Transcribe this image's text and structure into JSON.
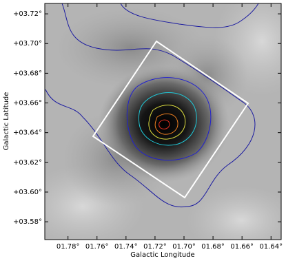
{
  "chart_data": {
    "type": "image",
    "xlabel": "Galactic Longitude",
    "ylabel": "Galactic Latitude",
    "xlim": [
      1.796,
      1.633
    ],
    "ylim": [
      3.568,
      3.727
    ],
    "xticks": [
      {
        "value": 1.78,
        "label": "01.78°"
      },
      {
        "value": 1.76,
        "label": "01.76°"
      },
      {
        "value": 1.74,
        "label": "01.74°"
      },
      {
        "value": 1.72,
        "label": "01.72°"
      },
      {
        "value": 1.7,
        "label": "01.70°"
      },
      {
        "value": 1.68,
        "label": "01.68°"
      },
      {
        "value": 1.66,
        "label": "01.66°"
      },
      {
        "value": 1.64,
        "label": "01.64°"
      }
    ],
    "yticks": [
      {
        "value": 3.58,
        "label": "+03.58°"
      },
      {
        "value": 3.6,
        "label": "+03.60°"
      },
      {
        "value": 3.62,
        "label": "+03.62°"
      },
      {
        "value": 3.64,
        "label": "+03.64°"
      },
      {
        "value": 3.66,
        "label": "+03.66°"
      },
      {
        "value": 3.68,
        "label": "+03.68°"
      },
      {
        "value": 3.7,
        "label": "+03.70°"
      },
      {
        "value": 3.72,
        "label": "+03.72°"
      }
    ]
  }
}
